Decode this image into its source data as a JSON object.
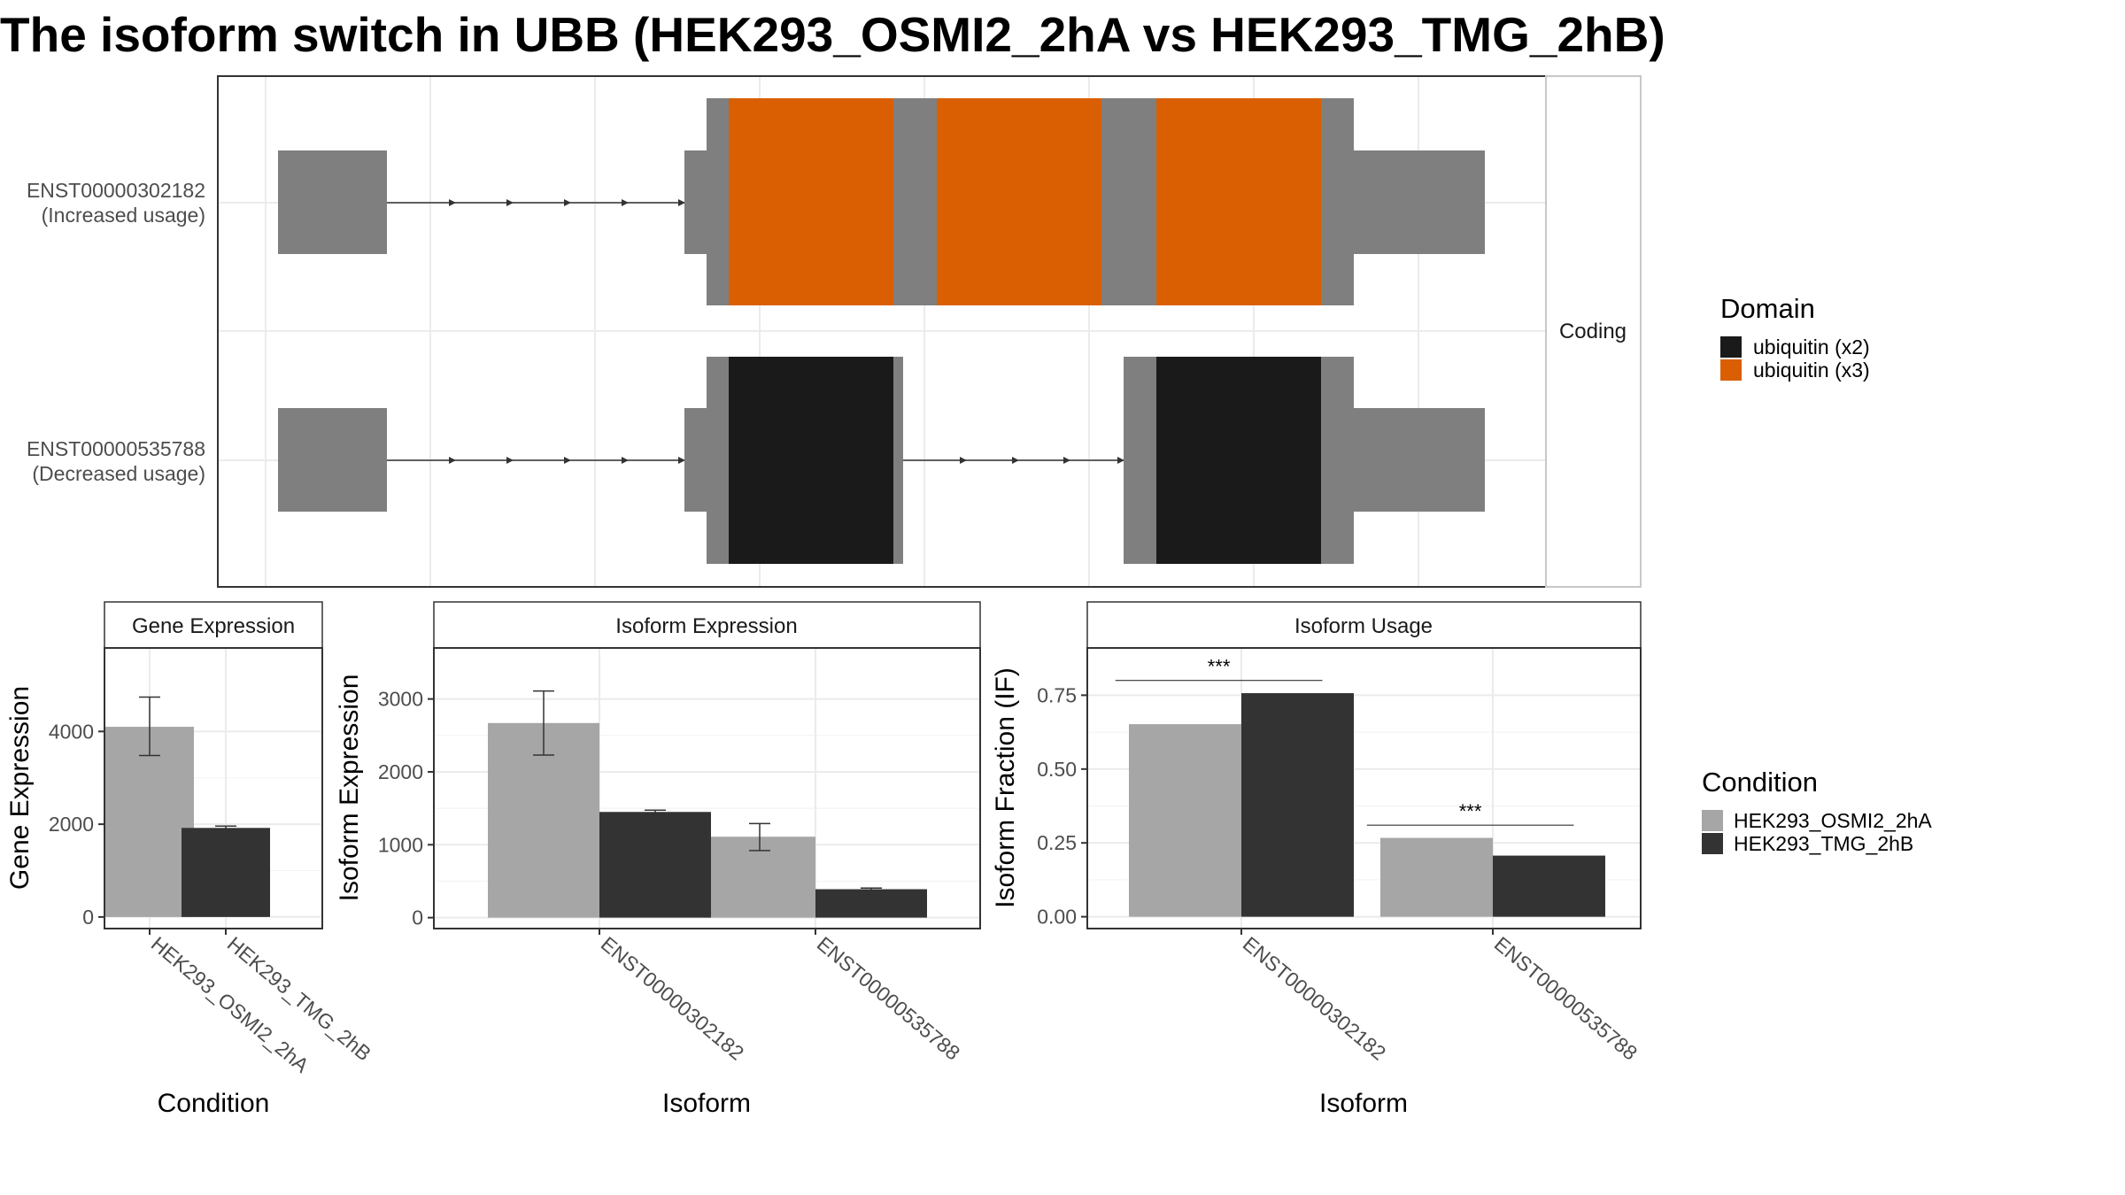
{
  "title": "The isoform switch in UBB (HEK293_OSMI2_2hA vs HEK293_TMG_2hB)",
  "colors": {
    "exon": "#7f7f7f",
    "domain_x2": "#1a1a1a",
    "domain_x3": "#d95f02",
    "cond_a": "#a6a6a6",
    "cond_b": "#333333"
  },
  "structure": {
    "strip_label": "Coding",
    "transcripts": [
      {
        "id": "ENST00000302182",
        "note": "(Increased usage)",
        "domain": "ubiquitin (x3)"
      },
      {
        "id": "ENST00000535788",
        "note": "(Decreased usage)",
        "domain": "ubiquitin (x2)"
      }
    ]
  },
  "legend_domain": {
    "title": "Domain",
    "items": [
      {
        "label": "ubiquitin (x2)",
        "color": "#1a1a1a"
      },
      {
        "label": "ubiquitin (x3)",
        "color": "#d95f02"
      }
    ]
  },
  "legend_condition": {
    "title": "Condition",
    "items": [
      {
        "label": "HEK293_OSMI2_2hA",
        "color": "#a6a6a6"
      },
      {
        "label": "HEK293_TMG_2hB",
        "color": "#333333"
      }
    ]
  },
  "chart_data": [
    {
      "type": "bar",
      "panel": "Gene Expression",
      "xlabel": "Condition",
      "ylabel": "Gene Expression",
      "ylim": [
        -250,
        5800
      ],
      "yticks": [
        0,
        2000,
        4000
      ],
      "categories": [
        "HEK293_OSMI2_2hA",
        "HEK293_TMG_2hB"
      ],
      "values": [
        4100,
        1920
      ],
      "errors": [
        [
          3480,
          4740
        ],
        [
          1880,
          1960
        ]
      ]
    },
    {
      "type": "bar",
      "panel": "Isoform Expression",
      "xlabel": "Isoform",
      "ylabel": "Isoform Expression",
      "ylim": [
        -150,
        3700
      ],
      "yticks": [
        0,
        1000,
        2000,
        3000
      ],
      "categories": [
        "ENST00000302182",
        "ENST00000535788"
      ],
      "series": [
        {
          "name": "HEK293_OSMI2_2hA",
          "values": [
            2670,
            1110
          ],
          "errors": [
            [
              2230,
              3110
            ],
            [
              920,
              1290
            ]
          ]
        },
        {
          "name": "HEK293_TMG_2hB",
          "values": [
            1450,
            390
          ],
          "errors": [
            [
              1425,
              1475
            ],
            [
              375,
              405
            ]
          ]
        }
      ]
    },
    {
      "type": "bar",
      "panel": "Isoform Usage",
      "xlabel": "Isoform",
      "ylabel": "Isoform Fraction (IF)",
      "ylim": [
        -0.04,
        0.91
      ],
      "yticks": [
        0.0,
        0.25,
        0.5,
        0.75
      ],
      "yticklabels": [
        "0.00",
        "0.25",
        "0.50",
        "0.75"
      ],
      "categories": [
        "ENST00000302182",
        "ENST00000535788"
      ],
      "series": [
        {
          "name": "HEK293_OSMI2_2hA",
          "values": [
            0.652,
            0.267
          ]
        },
        {
          "name": "HEK293_TMG_2hB",
          "values": [
            0.757,
            0.207
          ]
        }
      ],
      "significance": [
        {
          "category": "ENST00000302182",
          "label": "***",
          "y": 0.8
        },
        {
          "category": "ENST00000535788",
          "label": "***",
          "y": 0.31
        }
      ]
    }
  ]
}
